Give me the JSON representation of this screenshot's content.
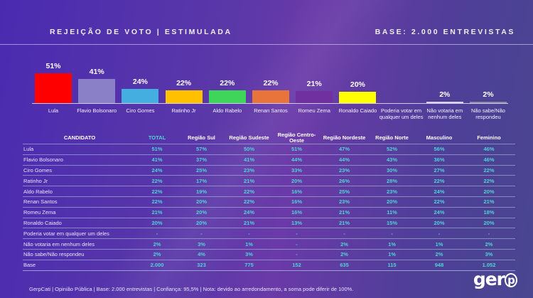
{
  "header": {
    "title": "REJEIÇÃO DE VOTO | ESTIMULADA",
    "base": "BASE: 2.000 ENTREVISTAS"
  },
  "chart_data": {
    "type": "bar",
    "categories": [
      "Lula",
      "Flavio Bolsonaro",
      "Ciro Gomes",
      "Ratinho Jr",
      "Aldo Rabelo",
      "Renan Santos",
      "Romeu Zema",
      "Ronaldo Caiado",
      "Poderia votar em qualquer um deles",
      "Não votaria em nenhum deles",
      "Não sabe/Não respondeu"
    ],
    "values": [
      51,
      41,
      24,
      22,
      22,
      22,
      21,
      20,
      null,
      2,
      2
    ],
    "labels": [
      "51%",
      "41%",
      "24%",
      "22%",
      "22%",
      "22%",
      "21%",
      "20%",
      "",
      "2%",
      "2%"
    ],
    "colors": [
      "#ff0000",
      "#8a80c8",
      "#45aee0",
      "#ffc000",
      "#3fd45a",
      "#e8743b",
      "#7030a0",
      "#ffff00",
      "#ffffff",
      "#d8d4ee",
      "#8a8aa0"
    ],
    "ylim": [
      0,
      51
    ],
    "grid": false
  },
  "table": {
    "headers": [
      "CANDIDATO",
      "TOTAL",
      "Região Sul",
      "Região Sudeste",
      "Região Centro-Oeste",
      "Região Nordeste",
      "Região Norte",
      "Masculino",
      "Feminino"
    ],
    "rows": [
      [
        "Lula",
        "51%",
        "57%",
        "50%",
        "51%",
        "47%",
        "52%",
        "56%",
        "46%"
      ],
      [
        "Flavio Bolsonaro",
        "41%",
        "37%",
        "41%",
        "44%",
        "44%",
        "43%",
        "36%",
        "46%"
      ],
      [
        "Ciro Gomes",
        "24%",
        "25%",
        "23%",
        "33%",
        "23%",
        "30%",
        "27%",
        "22%"
      ],
      [
        "Ratinho Jr",
        "22%",
        "17%",
        "21%",
        "20%",
        "26%",
        "28%",
        "22%",
        "22%"
      ],
      [
        "Aldo Rabelo",
        "22%",
        "19%",
        "22%",
        "16%",
        "25%",
        "23%",
        "24%",
        "20%"
      ],
      [
        "Renan Santos",
        "22%",
        "20%",
        "22%",
        "16%",
        "23%",
        "20%",
        "22%",
        "21%"
      ],
      [
        "Romeu Zema",
        "21%",
        "20%",
        "24%",
        "16%",
        "21%",
        "11%",
        "24%",
        "18%"
      ],
      [
        "Ronaldo Caiado",
        "20%",
        "20%",
        "21%",
        "13%",
        "21%",
        "15%",
        "20%",
        "20%"
      ],
      [
        "Poderia votar em qualquer um deles",
        "-",
        "-",
        "-",
        "-",
        "-",
        "-",
        "-",
        "-"
      ],
      [
        "Não votaria em nenhum deles",
        "2%",
        "3%",
        "1%",
        "-",
        "2%",
        "1%",
        "1%",
        "2%"
      ],
      [
        "Não sabe/Não respondeu",
        "2%",
        "4%",
        "3%",
        "-",
        "2%",
        "1%",
        "2%",
        "3%"
      ],
      [
        "Base",
        "2.000",
        "323",
        "775",
        "152",
        "635",
        "115",
        "948",
        "1.052"
      ]
    ]
  },
  "footer": {
    "note": "GerpCati | Opinião Pública | Base: 2.000 entrevistas | Confiança: 95,5% | Nota: devido ao arredondamento, a soma pode diferir de 100%.",
    "logo": "gerp"
  }
}
